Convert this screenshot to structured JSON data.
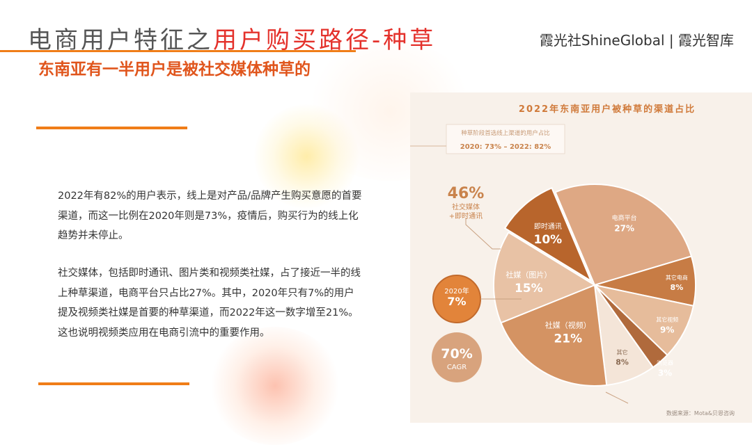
{
  "header": {
    "title_prefix": "电商用户特征之",
    "title_accent": "用户购买路径-种草",
    "brand": "霞光社ShineGlobal | 霞光智库",
    "subtitle": "东南亚有一半用户是被社交媒体种草的"
  },
  "body": {
    "paragraph_1": "2022年有82%的用户表示，线上是对产品/品牌产生购买意愿的首要渠道，而这一比例在2020年则是73%，疫情后，购买行为的线上化趋势并未停止。",
    "paragraph_2": "社交媒体，包括即时通讯、图片类和视频类社媒，占了接近一半的线上种草渠道，电商平台只占比27%。其中，2020年只有7%的用户提及视频类社媒是首要的种草渠道，而2022年这一数字增至21%。这也说明视频类应用在电商引流中的重要作用。"
  },
  "chart_data": {
    "type": "pie",
    "title": "2022年东南亚用户被种草的渠道占比",
    "note_label": "种草阶段首选线上渠道的用户占比",
    "note_values": "2020: 73%  –  2022: 82%",
    "slices": [
      {
        "name": "即时通讯",
        "value": 10,
        "label": "10%",
        "color": "#b8652c"
      },
      {
        "name": "电商平台",
        "value": 27,
        "label": "27%",
        "color": "#dea884"
      },
      {
        "name": "其它电商",
        "value": 8,
        "label": "8%",
        "color": "#c77c45"
      },
      {
        "name": "其它视频",
        "value": 9,
        "label": "9%",
        "color": "#e6bc9b"
      },
      {
        "name": "浏览器",
        "value": 3,
        "label": "3%",
        "color": "#b06a3c"
      },
      {
        "name": "其它",
        "value": 8,
        "label": "8%",
        "color": "#f4e5d8"
      },
      {
        "name": "社媒（视频）",
        "value": 21,
        "label": "21%",
        "color": "#d49363"
      },
      {
        "name": "社媒（图片）",
        "value": 15,
        "label": "15%",
        "color": "#e8c2a5"
      }
    ],
    "callouts": {
      "social_pct": "46%",
      "social_label_1": "社交媒体",
      "social_label_2": "+即时通讯",
      "video_2020_year": "2020年",
      "video_2020_pct": "7%",
      "cagr_pct": "70%",
      "cagr_label": "CAGR"
    },
    "source": "数据来源：Mota&贝恩咨询"
  },
  "colors": {
    "accent_red": "#e4312b",
    "accent_orange": "#f07d18",
    "chart_brown": "#b8652c"
  }
}
